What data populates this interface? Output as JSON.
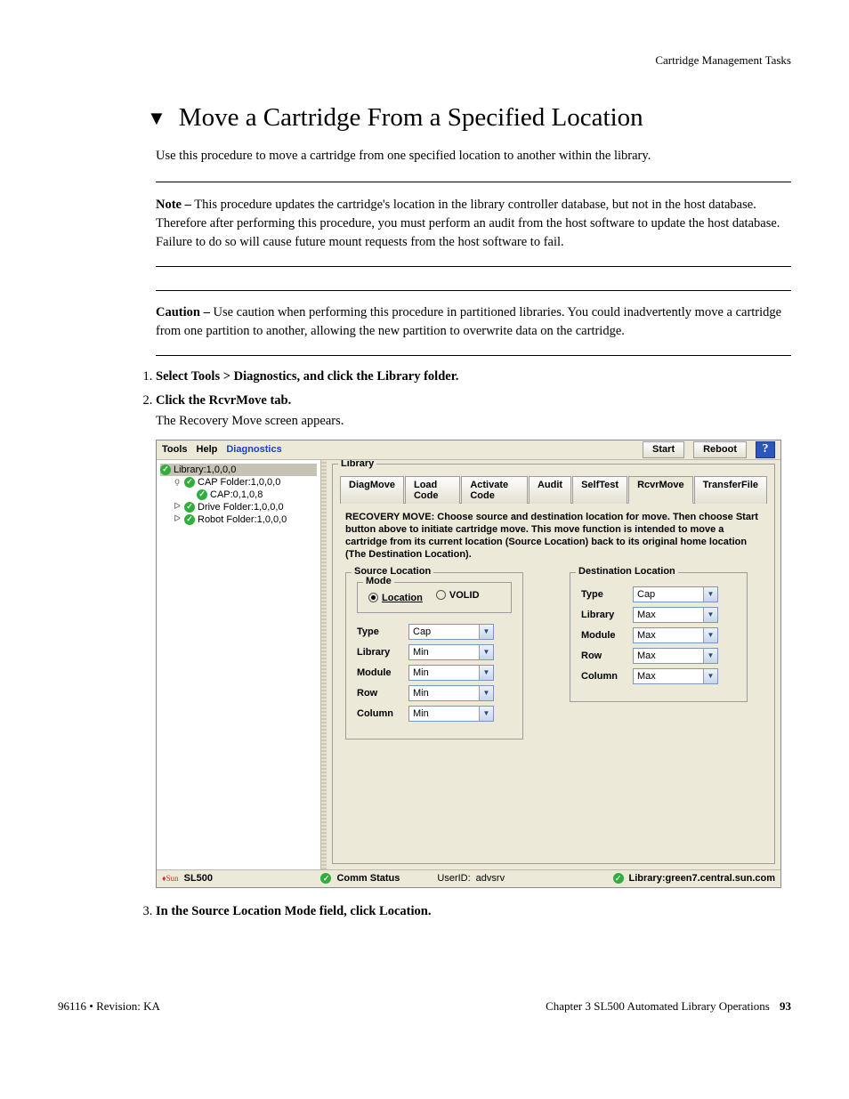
{
  "header": {
    "section": "Cartridge Management Tasks"
  },
  "heading": {
    "title": "Move a Cartridge From a Specified Location"
  },
  "intro": "Use this procedure to move a cartridge from one specified location to another within the library.",
  "note": {
    "label": "Note –",
    "text": "This procedure updates the cartridge's location in the library controller database, but not in the host database. Therefore after performing this procedure, you must perform an audit from the host software to update the host database. Failure to do so will cause future mount requests from the host software to fail."
  },
  "caution": {
    "label": "Caution –",
    "text": "Use caution when performing this procedure in partitioned libraries. You could inadvertently move a cartridge from one partition to another, allowing the new partition to overwrite data on the cartridge."
  },
  "steps": [
    {
      "lead": "Select Tools > Diagnostics, and click the Library folder."
    },
    {
      "lead": "Click the RcvrMove tab.",
      "follow": "The Recovery Move screen appears."
    },
    {
      "lead": "In the Source Location Mode field, click Location."
    }
  ],
  "ui": {
    "menubar": {
      "tools": "Tools",
      "help": "Help",
      "diagnostics": "Diagnostics",
      "start": "Start",
      "reboot": "Reboot",
      "help_q": "?"
    },
    "tree": {
      "root": "Library:1,0,0,0",
      "items": [
        {
          "handle": "ǫ",
          "label": "CAP Folder:1,0,0,0",
          "depth": 1
        },
        {
          "handle": "",
          "label": "CAP:0,1,0,8",
          "depth": 2
        },
        {
          "handle": "ᐅ",
          "label": "Drive Folder:1,0,0,0",
          "depth": 1
        },
        {
          "handle": "ᐅ",
          "label": "Robot Folder:1,0,0,0",
          "depth": 1
        }
      ]
    },
    "fieldset_legend": "Library",
    "tabs": [
      "DiagMove",
      "Load Code",
      "Activate Code",
      "Audit",
      "SelfTest",
      "RcvrMove",
      "TransferFile"
    ],
    "active_tab_index": 5,
    "instructions": "RECOVERY MOVE: Choose source and destination location for move. Then choose Start button above to initiate cartridge move. This move function is intended to move a cartridge from its current location (Source Location) back to its original home location (The Destination Location).",
    "source": {
      "legend": "Source Location",
      "mode_legend": "Mode",
      "mode_location": "Location",
      "mode_volid": "VOLID",
      "rows": [
        {
          "label": "Type",
          "value": "Cap"
        },
        {
          "label": "Library",
          "value": "Min"
        },
        {
          "label": "Module",
          "value": "Min"
        },
        {
          "label": "Row",
          "value": "Min"
        },
        {
          "label": "Column",
          "value": "Min"
        }
      ]
    },
    "dest": {
      "legend": "Destination Location",
      "rows": [
        {
          "label": "Type",
          "value": "Cap"
        },
        {
          "label": "Library",
          "value": "Max"
        },
        {
          "label": "Module",
          "value": "Max"
        },
        {
          "label": "Row",
          "value": "Max"
        },
        {
          "label": "Column",
          "value": "Max"
        }
      ]
    },
    "status": {
      "brand": "♦Sun",
      "model": "SL500",
      "comm": "Comm Status",
      "user_label": "UserID:",
      "user": "advsrv",
      "lib_label": "Library:",
      "lib": "green7.central.sun.com"
    }
  },
  "footer": {
    "left": "96116 • Revision: KA",
    "right_text": "Chapter 3 SL500 Automated Library Operations",
    "page": "93"
  }
}
